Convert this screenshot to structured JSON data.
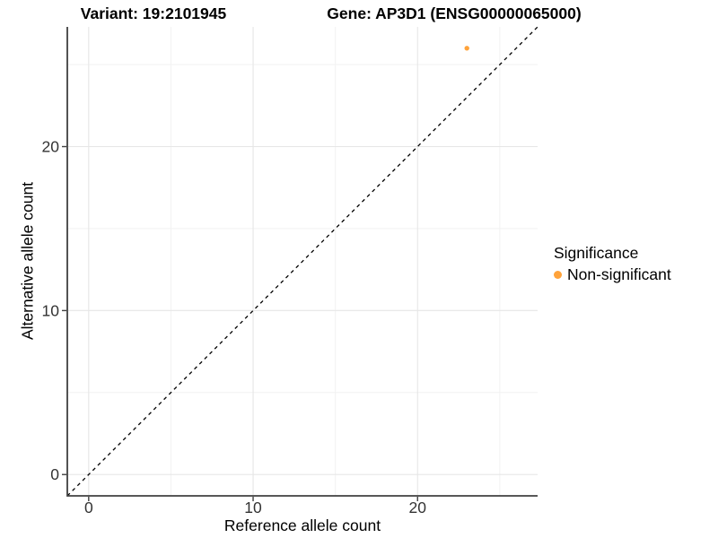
{
  "titles": {
    "variant": "Variant: 19:2101945",
    "gene": "Gene: AP3D1 (ENSG00000065000)"
  },
  "chart_data": {
    "type": "scatter",
    "xlabel": "Reference allele count",
    "ylabel": "Alternative allele count",
    "xlim": [
      -1.3,
      27.3
    ],
    "ylim": [
      -1.3,
      27.3
    ],
    "x_ticks": [
      0,
      10,
      20
    ],
    "y_ticks": [
      0,
      10,
      20
    ],
    "x_minor_ticks": [
      5,
      15,
      25
    ],
    "y_minor_ticks": [
      5,
      15,
      25
    ],
    "grid": true,
    "series": [
      {
        "name": "Non-significant",
        "color": "#FFA33B",
        "points": [
          {
            "x": 23,
            "y": 26
          }
        ]
      }
    ],
    "reference_line": {
      "type": "identity-diagonal",
      "style": "dashed",
      "color": "#000000"
    },
    "legend": {
      "title": "Significance",
      "position": "right",
      "entries": [
        {
          "label": "Non-significant",
          "color": "#FFA33B"
        }
      ]
    }
  },
  "colors": {
    "background": "#ffffff",
    "axis_line": "#404040",
    "tick_text": "#333333",
    "grid_major": "#e6e6e6",
    "grid_minor": "#f2f2f2"
  }
}
